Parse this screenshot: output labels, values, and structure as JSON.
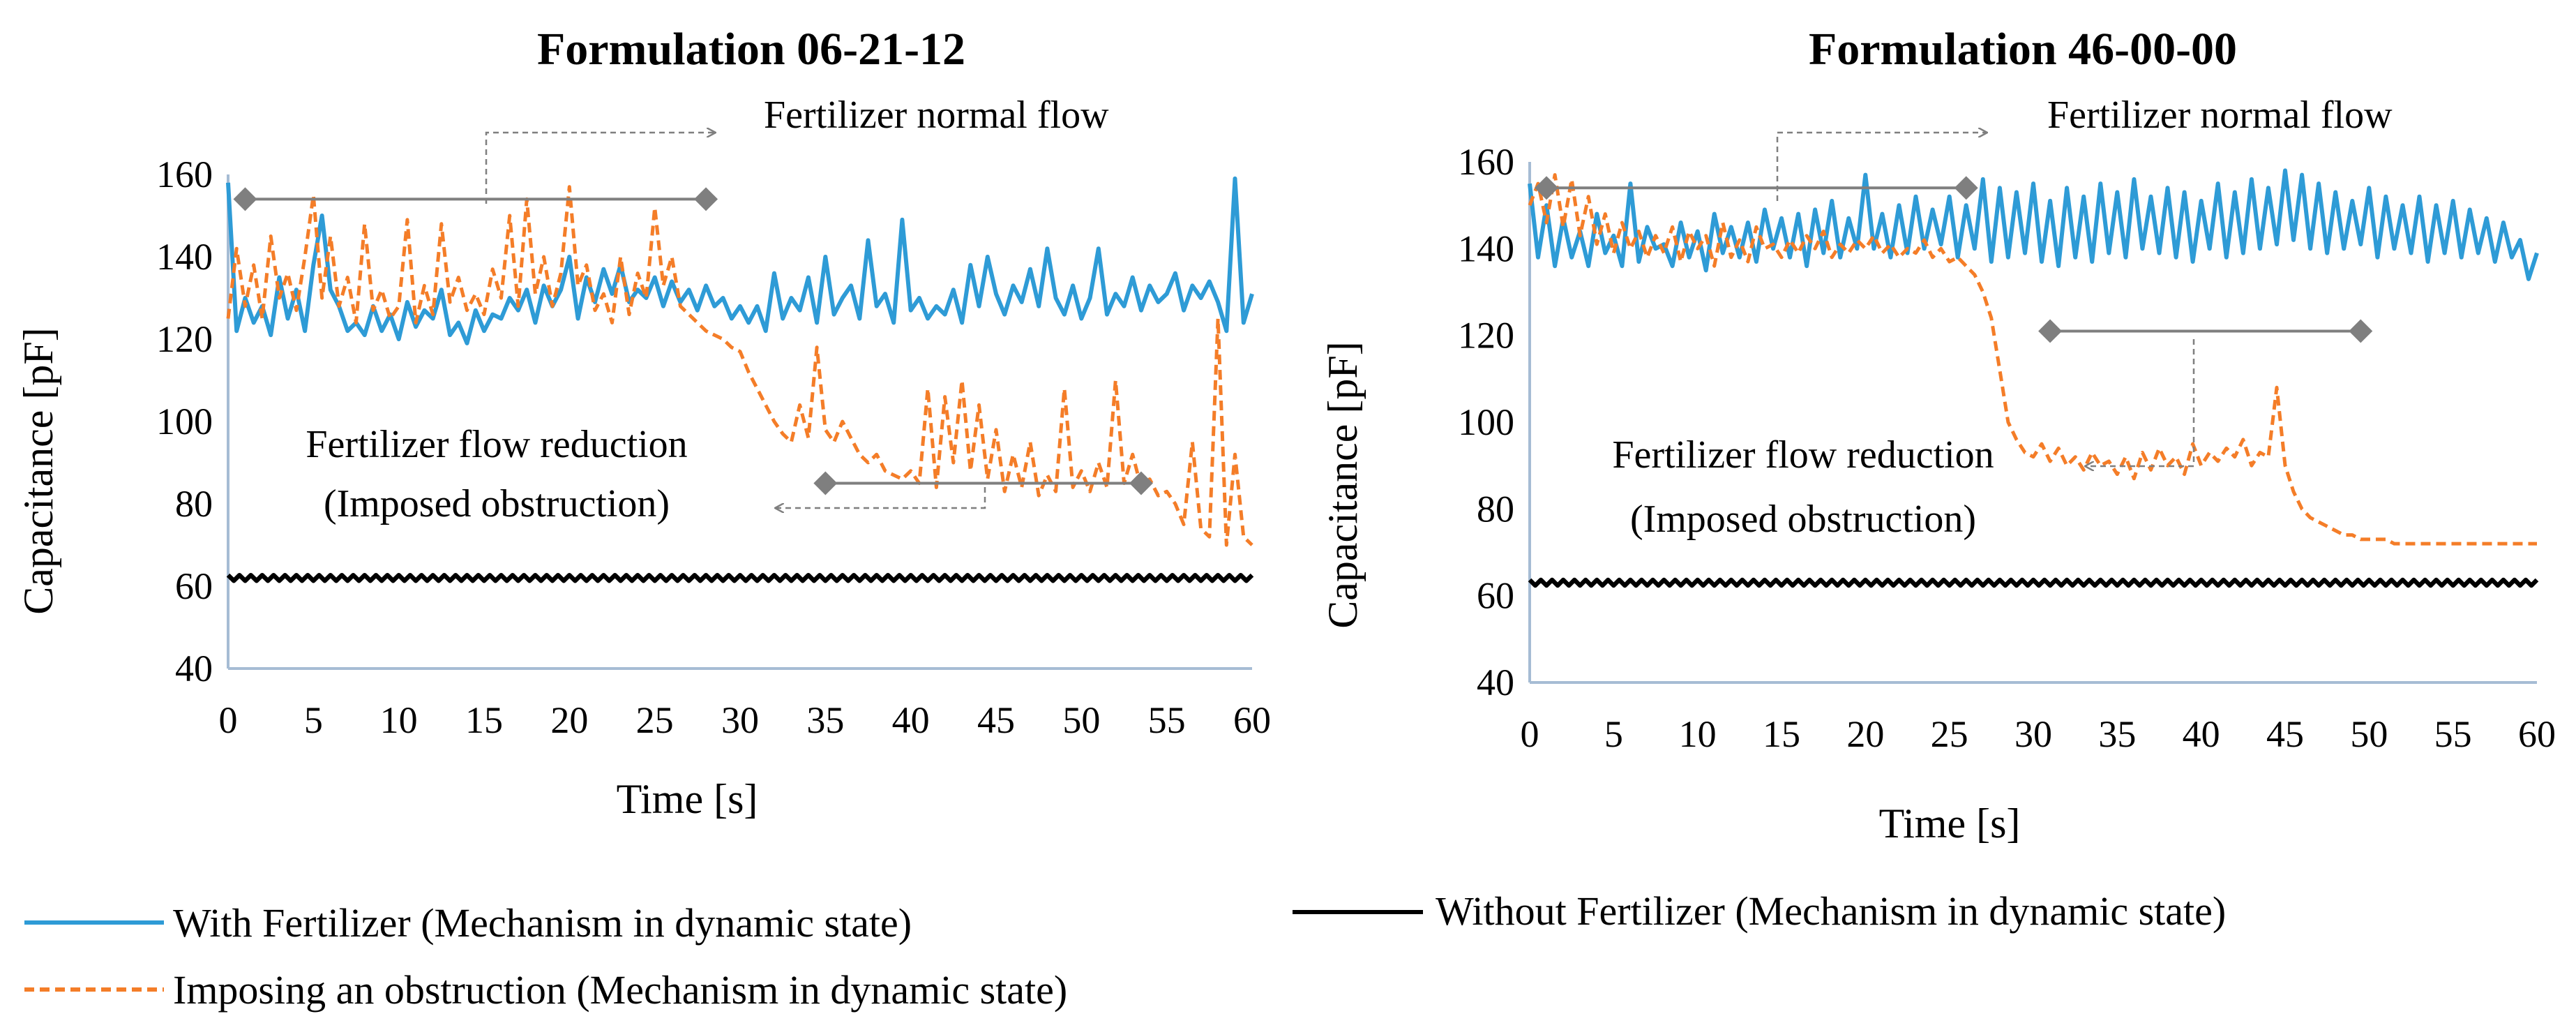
{
  "figure": {
    "legend": [
      {
        "key": "with",
        "label": "With Fertilizer (Mechanism in dynamic state)",
        "color": "#2E9BD6",
        "style": "solid"
      },
      {
        "key": "without",
        "label": "Without Fertilizer (Mechanism in dynamic state)",
        "color": "#000000",
        "style": "solid"
      },
      {
        "key": "obstruction",
        "label": "Imposing an obstruction (Mechanism in dynamic state)",
        "color": "#F47D28",
        "style": "dashed"
      }
    ],
    "colors": {
      "with": "#2E9BD6",
      "without": "#000000",
      "obstruction": "#F47D28",
      "axis": "#A6BCD4",
      "annotation": "#7F7F7F"
    }
  },
  "chart_data": [
    {
      "type": "line",
      "title": "Formulation 06-21-12",
      "xlabel": "Time [s]",
      "ylabel": "Capacitance [pF]",
      "xlim": [
        0,
        60
      ],
      "ylim": [
        40,
        160
      ],
      "xticks": [
        0,
        5,
        10,
        15,
        20,
        25,
        30,
        35,
        40,
        45,
        50,
        55,
        60
      ],
      "yticks": [
        40,
        60,
        80,
        100,
        120,
        140,
        160
      ],
      "series": [
        {
          "name": "With Fertilizer (Mechanism in dynamic state)",
          "x": [
            0,
            0.5,
            1,
            1.5,
            2,
            2.5,
            3,
            3.5,
            4,
            4.5,
            5,
            5.5,
            6,
            6.5,
            7,
            7.5,
            8,
            8.5,
            9,
            9.5,
            10,
            10.5,
            11,
            11.5,
            12,
            12.5,
            13,
            13.5,
            14,
            14.5,
            15,
            15.5,
            16,
            16.5,
            17,
            17.5,
            18,
            18.5,
            19,
            19.5,
            20,
            20.5,
            21,
            21.5,
            22,
            22.5,
            23,
            23.5,
            24,
            24.5,
            25,
            25.5,
            26,
            26.5,
            27,
            27.5,
            28,
            28.5,
            29,
            29.5,
            30,
            30.5,
            31,
            31.5,
            32,
            32.5,
            33,
            33.5,
            34,
            34.5,
            35,
            35.5,
            36,
            36.5,
            37,
            37.5,
            38,
            38.5,
            39,
            39.5,
            40,
            40.5,
            41,
            41.5,
            42,
            42.5,
            43,
            43.5,
            44,
            44.5,
            45,
            45.5,
            46,
            46.5,
            47,
            47.5,
            48,
            48.5,
            49,
            49.5,
            50,
            50.5,
            51,
            51.5,
            52,
            52.5,
            53,
            53.5,
            54,
            54.5,
            55,
            55.5,
            56,
            56.5,
            57,
            57.5,
            58,
            58.5,
            59,
            59.5,
            60
          ],
          "values": [
            158,
            122,
            130,
            124,
            128,
            121,
            135,
            125,
            132,
            122,
            138,
            150,
            132,
            128,
            122,
            124,
            121,
            128,
            122,
            126,
            120,
            129,
            123,
            127,
            125,
            132,
            121,
            124,
            119,
            127,
            122,
            126,
            125,
            130,
            127,
            132,
            124,
            133,
            128,
            132,
            140,
            125,
            135,
            129,
            137,
            131,
            138,
            129,
            132,
            130,
            135,
            128,
            134,
            129,
            132,
            127,
            133,
            128,
            130,
            125,
            128,
            124,
            128,
            122,
            136,
            125,
            130,
            127,
            135,
            124,
            140,
            126,
            130,
            133,
            125,
            144,
            128,
            131,
            124,
            149,
            127,
            130,
            125,
            128,
            126,
            132,
            124,
            138,
            128,
            140,
            131,
            126,
            133,
            129,
            137,
            128,
            142,
            130,
            126,
            133,
            125,
            130,
            142,
            126,
            131,
            128,
            135,
            127,
            133,
            129,
            131,
            136,
            127,
            133,
            130,
            134,
            129,
            122,
            159,
            124,
            131
          ]
        },
        {
          "name": "Without Fertilizer (Mechanism in dynamic state)",
          "x": [
            0,
            60
          ],
          "values": [
            62,
            62
          ]
        },
        {
          "name": "Imposing an obstruction (Mechanism in dynamic state)",
          "x": [
            0,
            0.5,
            1,
            1.5,
            2,
            2.5,
            3,
            3.5,
            4,
            4.5,
            5,
            5.5,
            6,
            6.5,
            7,
            7.5,
            8,
            8.5,
            9,
            9.5,
            10,
            10.5,
            11,
            11.5,
            12,
            12.5,
            13,
            13.5,
            14,
            14.5,
            15,
            15.5,
            16,
            16.5,
            17,
            17.5,
            18,
            18.5,
            19,
            19.5,
            20,
            20.5,
            21,
            21.5,
            22,
            22.5,
            23,
            23.5,
            24,
            24.5,
            25,
            25.5,
            26,
            26.5,
            27,
            27.5,
            28,
            28.5,
            29,
            29.5,
            30,
            30.5,
            31,
            31.5,
            32,
            32.5,
            33,
            33.5,
            34,
            34.5,
            35,
            35.5,
            36,
            36.5,
            37,
            37.5,
            38,
            38.5,
            39,
            39.5,
            40,
            40.5,
            41,
            41.5,
            42,
            42.5,
            43,
            43.5,
            44,
            44.5,
            45,
            45.5,
            46,
            46.5,
            47,
            47.5,
            48,
            48.5,
            49,
            49.5,
            50,
            50.5,
            51,
            51.5,
            52,
            52.5,
            53,
            53.5,
            54,
            54.5,
            55,
            55.5,
            56,
            56.5,
            57,
            57.5,
            58,
            58.5,
            59,
            59.5,
            60
          ],
          "values": [
            125,
            142,
            128,
            138,
            125,
            145,
            130,
            136,
            127,
            140,
            155,
            130,
            145,
            128,
            135,
            124,
            148,
            127,
            132,
            125,
            128,
            149,
            124,
            133,
            126,
            148,
            129,
            135,
            127,
            131,
            126,
            137,
            130,
            150,
            128,
            154,
            131,
            140,
            128,
            136,
            157,
            133,
            138,
            127,
            131,
            124,
            140,
            126,
            136,
            130,
            152,
            133,
            140,
            128,
            126,
            124,
            122,
            121,
            120,
            118,
            117,
            112,
            108,
            104,
            100,
            97,
            95,
            104,
            96,
            118,
            98,
            95,
            100,
            96,
            92,
            90,
            92,
            88,
            87,
            86,
            88,
            85,
            108,
            84,
            106,
            90,
            110,
            88,
            104,
            86,
            98,
            83,
            92,
            84,
            95,
            82,
            87,
            83,
            108,
            84,
            88,
            83,
            90,
            84,
            110,
            85,
            92,
            84,
            86,
            82,
            83,
            80,
            75,
            95,
            74,
            72,
            125,
            70,
            92,
            72,
            70
          ]
        }
      ],
      "annotations": [
        {
          "label": "Fertilizer normal flow",
          "marker_x": [
            1,
            28
          ],
          "marker_y": 154
        },
        {
          "label_lines": [
            "Fertilizer flow reduction",
            "(Imposed obstruction)"
          ],
          "marker_x": [
            35,
            53.5
          ],
          "marker_y": 85
        }
      ]
    },
    {
      "type": "line",
      "title": "Formulation 46-00-00",
      "xlabel": "Time [s]",
      "ylabel": "Capacitance [pF]",
      "xlim": [
        0,
        60
      ],
      "ylim": [
        40,
        160
      ],
      "xticks": [
        0,
        5,
        10,
        15,
        20,
        25,
        30,
        35,
        40,
        45,
        50,
        55,
        60
      ],
      "yticks": [
        40,
        60,
        80,
        100,
        120,
        140,
        160
      ],
      "series": [
        {
          "name": "With Fertilizer (Mechanism in dynamic state)",
          "x": [
            0,
            0.5,
            1,
            1.5,
            2,
            2.5,
            3,
            3.5,
            4,
            4.5,
            5,
            5.5,
            6,
            6.5,
            7,
            7.5,
            8,
            8.5,
            9,
            9.5,
            10,
            10.5,
            11,
            11.5,
            12,
            12.5,
            13,
            13.5,
            14,
            14.5,
            15,
            15.5,
            16,
            16.5,
            17,
            17.5,
            18,
            18.5,
            19,
            19.5,
            20,
            20.5,
            21,
            21.5,
            22,
            22.5,
            23,
            23.5,
            24,
            24.5,
            25,
            25.5,
            26,
            26.5,
            27,
            27.5,
            28,
            28.5,
            29,
            29.5,
            30,
            30.5,
            31,
            31.5,
            32,
            32.5,
            33,
            33.5,
            34,
            34.5,
            35,
            35.5,
            36,
            36.5,
            37,
            37.5,
            38,
            38.5,
            39,
            39.5,
            40,
            40.5,
            41,
            41.5,
            42,
            42.5,
            43,
            43.5,
            44,
            44.5,
            45,
            45.5,
            46,
            46.5,
            47,
            47.5,
            48,
            48.5,
            49,
            49.5,
            50,
            50.5,
            51,
            51.5,
            52,
            52.5,
            53,
            53.5,
            54,
            54.5,
            55,
            55.5,
            56,
            56.5,
            57,
            57.5,
            58,
            58.5,
            59,
            59.5,
            60
          ],
          "values": [
            155,
            138,
            150,
            136,
            147,
            138,
            144,
            136,
            148,
            139,
            143,
            136,
            155,
            137,
            145,
            140,
            141,
            136,
            146,
            138,
            144,
            135,
            148,
            139,
            145,
            138,
            146,
            137,
            149,
            140,
            147,
            138,
            148,
            136,
            149,
            139,
            151,
            138,
            147,
            140,
            157,
            140,
            148,
            138,
            150,
            139,
            152,
            140,
            149,
            141,
            152,
            138,
            150,
            140,
            156,
            137,
            154,
            138,
            153,
            139,
            155,
            137,
            151,
            136,
            154,
            138,
            152,
            137,
            155,
            139,
            153,
            138,
            156,
            140,
            152,
            139,
            154,
            138,
            153,
            137,
            151,
            140,
            155,
            138,
            153,
            139,
            156,
            140,
            154,
            141,
            158,
            142,
            157,
            140,
            155,
            139,
            153,
            140,
            151,
            141,
            154,
            138,
            152,
            140,
            150,
            139,
            152,
            137,
            150,
            139,
            151,
            138,
            149,
            139,
            147,
            137,
            146,
            138,
            142,
            133,
            139
          ]
        },
        {
          "name": "Without Fertilizer (Mechanism in dynamic state)",
          "x": [
            0,
            60
          ],
          "values": [
            63,
            63
          ]
        },
        {
          "name": "Imposing an obstruction (Mechanism in dynamic state)",
          "x": [
            0,
            0.5,
            1,
            1.5,
            2,
            2.5,
            3,
            3.5,
            4,
            4.5,
            5,
            5.5,
            6,
            6.5,
            7,
            7.5,
            8,
            8.5,
            9,
            9.5,
            10,
            10.5,
            11,
            11.5,
            12,
            12.5,
            13,
            13.5,
            14,
            14.5,
            15,
            15.5,
            16,
            16.5,
            17,
            17.5,
            18,
            18.5,
            19,
            19.5,
            20,
            20.5,
            21,
            21.5,
            22,
            22.5,
            23,
            23.5,
            24,
            24.5,
            25,
            25.5,
            26,
            26.5,
            27,
            27.5,
            28,
            28.5,
            29,
            29.5,
            30,
            30.5,
            31,
            31.5,
            32,
            32.5,
            33,
            33.5,
            34,
            34.5,
            35,
            35.5,
            36,
            36.5,
            37,
            37.5,
            38,
            38.5,
            39,
            39.5,
            40,
            40.5,
            41,
            41.5,
            42,
            42.5,
            43,
            43.5,
            44,
            44.5,
            45,
            45.5,
            46,
            46.5,
            47,
            47.5,
            48,
            48.5,
            49,
            49.5,
            50,
            50.5,
            51,
            51.5,
            52,
            52.5,
            53,
            53.5,
            54,
            54.5,
            55,
            55.5,
            56,
            56.5,
            57,
            57.5,
            58,
            58.5,
            59,
            59.5,
            60
          ],
          "values": [
            150,
            155,
            146,
            157,
            145,
            156,
            143,
            152,
            141,
            148,
            139,
            146,
            140,
            144,
            138,
            143,
            139,
            145,
            137,
            144,
            140,
            143,
            136,
            146,
            138,
            142,
            137,
            145,
            140,
            141,
            138,
            142,
            139,
            143,
            140,
            144,
            138,
            141,
            139,
            142,
            140,
            143,
            139,
            141,
            138,
            140,
            139,
            142,
            138,
            140,
            137,
            138,
            136,
            134,
            130,
            124,
            112,
            100,
            96,
            93,
            92,
            95,
            91,
            94,
            90,
            92,
            89,
            93,
            90,
            91,
            88,
            92,
            87,
            93,
            89,
            94,
            90,
            92,
            88,
            95,
            90,
            93,
            91,
            94,
            92,
            96,
            90,
            93,
            92,
            108,
            90,
            84,
            80,
            78,
            77,
            76,
            75,
            74,
            74,
            73,
            73,
            73,
            73,
            72,
            72,
            72,
            72,
            72,
            72,
            72,
            72,
            72,
            72,
            72,
            72,
            72,
            72,
            72,
            72,
            72,
            72
          ]
        }
      ],
      "annotations": [
        {
          "label": "Fertilizer normal flow",
          "marker_x": [
            1,
            26
          ],
          "marker_y": 154
        },
        {
          "label_lines": [
            "Fertilizer flow reduction",
            "(Imposed obstruction)"
          ],
          "marker_x": [
            31,
            49.5
          ],
          "marker_y": 121
        }
      ]
    }
  ]
}
